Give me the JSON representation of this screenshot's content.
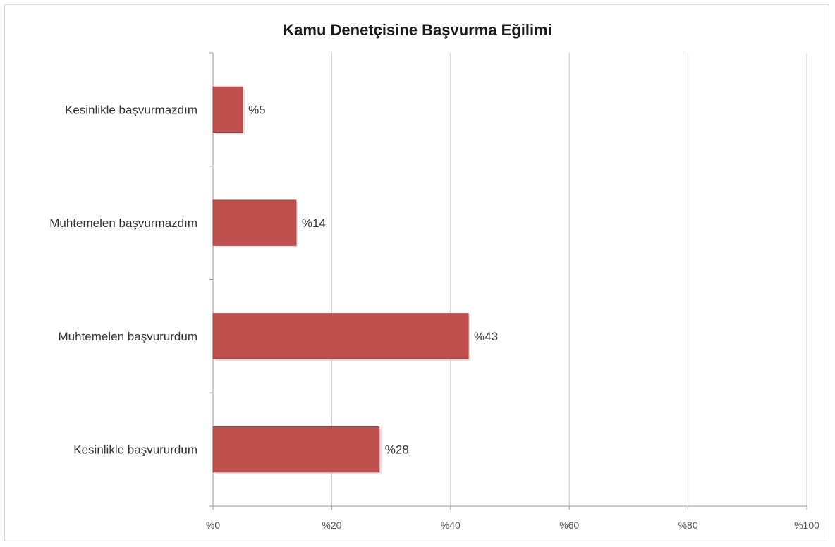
{
  "chart_data": {
    "type": "bar",
    "orientation": "horizontal",
    "title": "Kamu Denetçisine Başvurma Eğilimi",
    "xlabel": "",
    "ylabel": "",
    "categories": [
      "Kesinlikle başvurmazdım",
      "Muhtemelen başvurmazdım",
      "Muhtemelen başvururdum",
      "Kesinlikle başvururdum"
    ],
    "values": [
      5,
      14,
      43,
      28
    ],
    "data_labels": [
      "%5",
      "%14",
      "%43",
      "%28"
    ],
    "xlim": [
      0,
      100
    ],
    "x_ticks": [
      0,
      20,
      40,
      60,
      80,
      100
    ],
    "x_tick_labels": [
      "%0",
      "%20",
      "%40",
      "%60",
      "%80",
      "%100"
    ],
    "grid": true,
    "legend": "none",
    "bar_color": "#c0504d"
  }
}
